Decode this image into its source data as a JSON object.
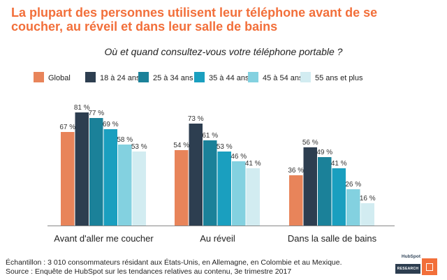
{
  "title": "La plupart des personnes utilisent leur téléphone avant de se coucher, au réveil et dans leur salle de bains",
  "subtitle": "Où et quand consultez-vous votre téléphone portable ?",
  "footnote_line1": "Échantillon : 3 010 consommateurs résidant aux États-Unis, en Allemagne, en Colombie et au Mexique.",
  "footnote_line2": "Source : Enquête de HubSpot sur les tendances relatives au contenu, 3e trimestre 2017",
  "logo": {
    "brand": "HubSpot",
    "label": "RESEARCH"
  },
  "chart_data": {
    "type": "bar",
    "categories": [
      "Avant d'aller me coucher",
      "Au réveil",
      "Dans la salle de bains"
    ],
    "series": [
      {
        "name": "Global",
        "values": [
          67,
          54,
          36
        ],
        "color": "#e8845a"
      },
      {
        "name": "18 à 24 ans",
        "values": [
          81,
          73,
          56
        ],
        "color": "#2d3e50"
      },
      {
        "name": "25 à 34 ans",
        "values": [
          77,
          61,
          49
        ],
        "color": "#1b8199"
      },
      {
        "name": "35 à 44 ans",
        "values": [
          69,
          53,
          41
        ],
        "color": "#1a9fbf"
      },
      {
        "name": "45 à 54 ans",
        "values": [
          58,
          46,
          26
        ],
        "color": "#83d1e0"
      },
      {
        "name": "55 ans et plus",
        "values": [
          53,
          41,
          16
        ],
        "color": "#d2ecf1"
      }
    ],
    "label_suffix": " %",
    "ylim": [
      0,
      100
    ],
    "grid": false,
    "legend": "top"
  }
}
